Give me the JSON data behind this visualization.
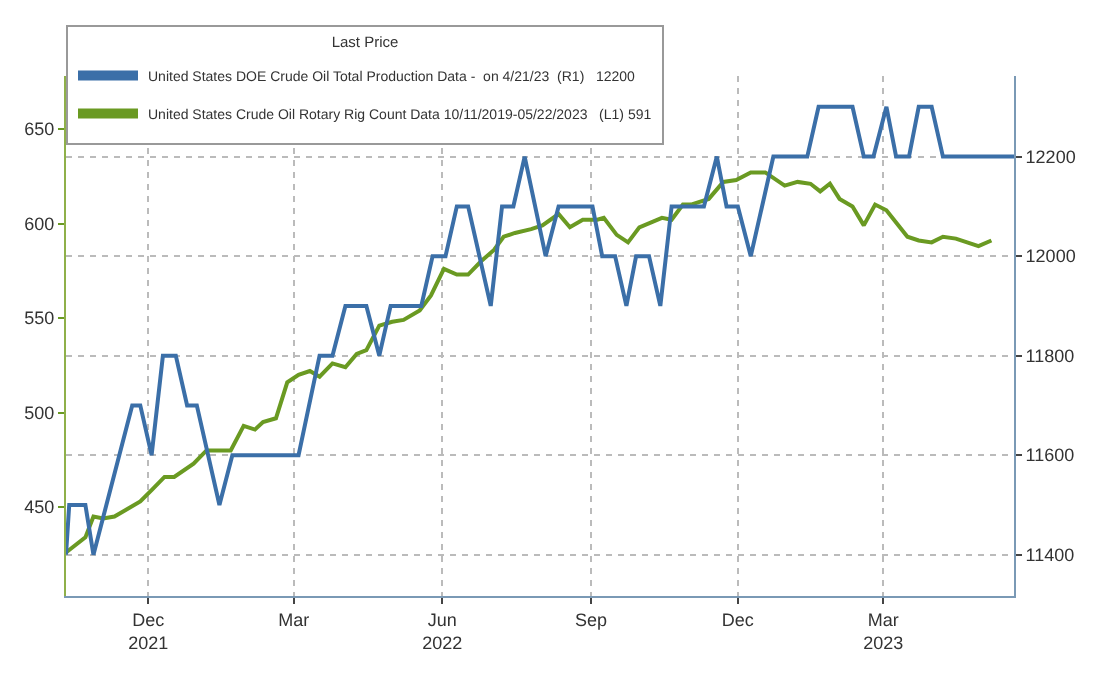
{
  "chart_data": {
    "type": "line",
    "legend_title": "Last Price",
    "legend": "top left",
    "grid": true,
    "series": [
      {
        "name": "United States DOE Crude Oil Total Production Data -  on 4/21/23  (R1)   12200",
        "color": "#3b6fa8",
        "axis": "y2",
        "x": [
          "2021-10-26",
          "2021-10-28",
          "2021-11-07",
          "2021-11-12",
          "2021-12-06",
          "2021-12-11",
          "2021-12-18",
          "2021-12-25",
          "2022-01-02",
          "2022-01-09",
          "2022-01-15",
          "2022-01-29",
          "2022-02-06",
          "2022-03-19",
          "2022-04-01",
          "2022-04-09",
          "2022-04-17",
          "2022-04-30",
          "2022-05-08",
          "2022-05-15",
          "2022-06-03",
          "2022-06-10",
          "2022-06-18",
          "2022-06-25",
          "2022-07-02",
          "2022-07-16",
          "2022-07-23",
          "2022-07-30",
          "2022-08-06",
          "2022-08-19",
          "2022-08-27",
          "2022-09-17",
          "2022-09-23",
          "2022-10-01",
          "2022-10-08",
          "2022-10-14",
          "2022-10-22",
          "2022-10-29",
          "2022-11-05",
          "2022-11-25",
          "2022-12-03",
          "2022-12-09",
          "2022-12-16",
          "2022-12-24",
          "2023-01-07",
          "2023-01-28",
          "2023-02-04",
          "2023-02-25",
          "2023-03-04",
          "2023-03-10",
          "2023-03-18",
          "2023-03-24",
          "2023-04-01",
          "2023-04-07",
          "2023-04-15",
          "2023-04-22",
          "2023-06-05"
        ],
        "values": [
          11400,
          11500,
          11500,
          11400,
          11700,
          11700,
          11600,
          11800,
          11800,
          11700,
          11700,
          11500,
          11600,
          11600,
          11800,
          11800,
          11900,
          11900,
          11800,
          11900,
          11900,
          12000,
          12000,
          12100,
          12100,
          11900,
          12100,
          12100,
          12200,
          12000,
          12100,
          12100,
          12000,
          12000,
          11900,
          12000,
          12000,
          11900,
          12100,
          12100,
          12200,
          12100,
          12100,
          12000,
          12200,
          12200,
          12300,
          12300,
          12200,
          12200,
          12300,
          12200,
          12200,
          12300,
          12300,
          12200,
          12200
        ]
      },
      {
        "name": "United States Crude Oil Rotary Rig Count Data 10/11/2019-05/22/2023   (L1) 591",
        "color": "#6a9a22",
        "axis": "y",
        "x": [
          "2021-10-26",
          "2021-11-07",
          "2021-11-12",
          "2021-11-18",
          "2021-11-25",
          "2021-12-03",
          "2021-12-11",
          "2021-12-18",
          "2021-12-26",
          "2022-01-01",
          "2022-01-13",
          "2022-01-21",
          "2022-02-05",
          "2022-02-13",
          "2022-02-20",
          "2022-02-25",
          "2022-03-05",
          "2022-03-12",
          "2022-03-19",
          "2022-03-26",
          "2022-04-01",
          "2022-04-09",
          "2022-04-17",
          "2022-04-24",
          "2022-04-30",
          "2022-05-08",
          "2022-05-16",
          "2022-05-23",
          "2022-06-02",
          "2022-06-09",
          "2022-06-17",
          "2022-06-25",
          "2022-07-02",
          "2022-07-10",
          "2022-07-18",
          "2022-07-24",
          "2022-07-31",
          "2022-08-10",
          "2022-08-17",
          "2022-08-27",
          "2022-09-03",
          "2022-09-11",
          "2022-09-20",
          "2022-09-24",
          "2022-10-02",
          "2022-10-09",
          "2022-10-16",
          "2022-10-30",
          "2022-11-05",
          "2022-11-12",
          "2022-11-17",
          "2022-11-28",
          "2022-12-07",
          "2022-12-15",
          "2022-12-24",
          "2023-01-02",
          "2023-01-14",
          "2023-01-22",
          "2023-01-30",
          "2023-02-05",
          "2023-02-11",
          "2023-02-17",
          "2023-02-25",
          "2023-03-04",
          "2023-03-11",
          "2023-03-18",
          "2023-03-31",
          "2023-04-07",
          "2023-04-15",
          "2023-04-22",
          "2023-04-30",
          "2023-05-14",
          "2023-05-22"
        ],
        "values": [
          426,
          434,
          445,
          444,
          445,
          449,
          453,
          459,
          466,
          466,
          473,
          480,
          480,
          493,
          491,
          495,
          497,
          516,
          520,
          522,
          519,
          526,
          524,
          531,
          533,
          546,
          548,
          549,
          554,
          562,
          576,
          573,
          573,
          580,
          586,
          593,
          595,
          597,
          599,
          605,
          598,
          602,
          602,
          603,
          594,
          590,
          598,
          603,
          602,
          610,
          610,
          613,
          622,
          623,
          627,
          627,
          620,
          622,
          621,
          617,
          621,
          613,
          609,
          599,
          610,
          607,
          593,
          591,
          590,
          593,
          592,
          588,
          591
        ]
      }
    ],
    "xlim": [
      "2021-10-26",
      "2023-06-05"
    ],
    "xticks": [
      {
        "value": "2021-12-16",
        "label": "Dec\n2021"
      },
      {
        "value": "2022-03-16",
        "label": "Mar"
      },
      {
        "value": "2022-06-16",
        "label": "Jun\n2022"
      },
      {
        "value": "2022-09-16",
        "label": "Sep"
      },
      {
        "value": "2022-12-16",
        "label": "Dec"
      },
      {
        "value": "2023-03-16",
        "label": "Mar\n2023"
      }
    ],
    "ylim": [
      403,
      678
    ],
    "yticks": [
      450,
      500,
      550,
      600,
      650
    ],
    "y2lim": [
      11317,
      12362
    ],
    "y2ticks": [
      11400,
      11600,
      11800,
      12000,
      12200
    ]
  }
}
